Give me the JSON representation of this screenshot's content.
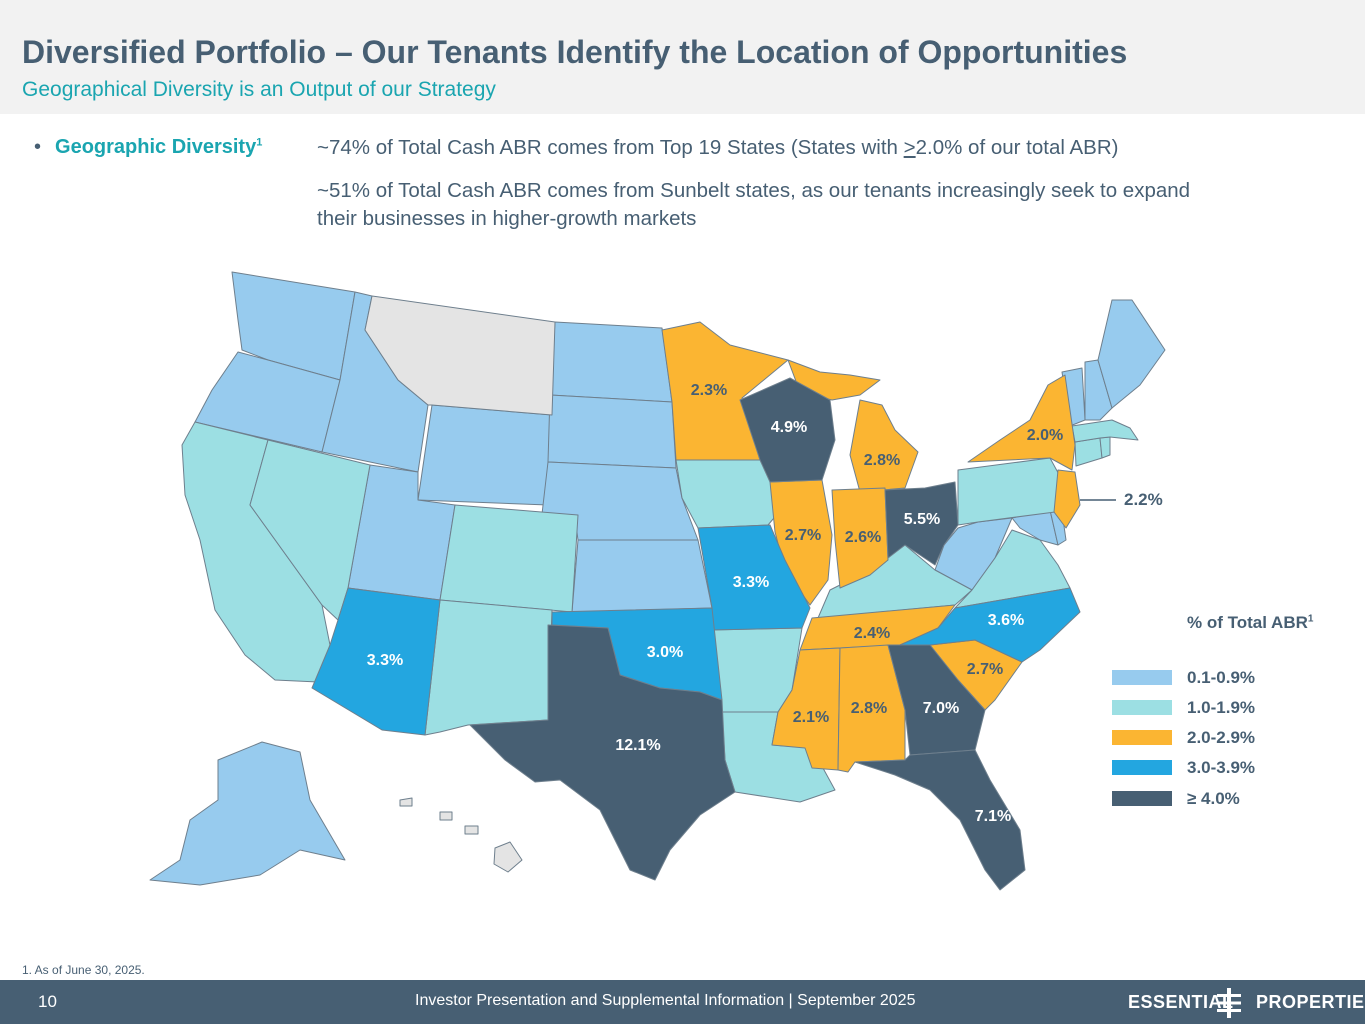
{
  "header": {
    "title": "Diversified Portfolio – Our Tenants Identify the Location of Opportunities",
    "subtitle": "Geographical Diversity is an Output of our Strategy"
  },
  "bullet": {
    "marker": "•",
    "label": "Geographic Diversity",
    "label_footnote": "1",
    "statement1_prefix": "~74% of Total Cash ABR comes from Top 19 States (States with ",
    "statement1_ge": ">",
    "statement1_suffix": "2.0% of our total ABR)",
    "statement2": "~51% of Total Cash ABR comes from Sunbelt states, as our tenants increasingly seek to expand their businesses in higher-growth markets"
  },
  "colors": {
    "band1": "#97cbee",
    "band2": "#9cdfe3",
    "band3": "#fbb532",
    "band4": "#23a6e0",
    "band5": "#475f73",
    "none": "#e4e4e4",
    "accent": "#1aa5b0",
    "dark": "#475f73"
  },
  "map_labels": {
    "TX": "12.1%",
    "FL": "7.1%",
    "GA": "7.0%",
    "OH": "5.5%",
    "WI": "4.9%",
    "NC": "3.6%",
    "AZ": "3.3%",
    "MO": "3.3%",
    "OK": "3.0%",
    "MI": "2.8%",
    "AL": "2.8%",
    "IL": "2.7%",
    "SC": "2.7%",
    "IN": "2.6%",
    "TN": "2.4%",
    "MN": "2.3%",
    "NJ": "2.2%",
    "MS": "2.1%",
    "NY": "2.0%"
  },
  "legend": {
    "title": "% of Total ABR",
    "title_footnote": "1",
    "items": [
      {
        "label": "0.1-0.9%",
        "color": "#97cbee"
      },
      {
        "label": "1.0-1.9%",
        "color": "#9cdfe3"
      },
      {
        "label": "2.0-2.9%",
        "color": "#fbb532"
      },
      {
        "label": "3.0-3.9%",
        "color": "#23a6e0"
      },
      {
        "label": "≥ 4.0%",
        "color": "#475f73"
      }
    ]
  },
  "footnote": "1. As of June 30, 2025.",
  "footer": {
    "page_number": "10",
    "text": "Investor Presentation and Supplemental Information |  September 2025",
    "logo_left": "ESSENTIAL",
    "logo_right": "PROPERTIES"
  }
}
